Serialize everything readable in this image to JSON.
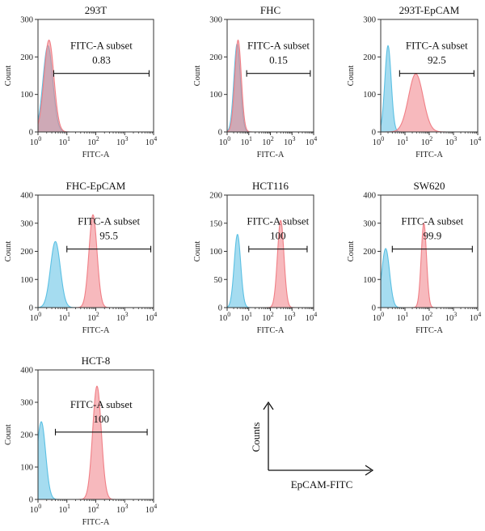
{
  "chart_data": [
    {
      "type": "area",
      "title": "293T",
      "xlabel": "FITC-A",
      "ylabel": "Count",
      "x_scale": "log",
      "xlim": [
        1,
        10000
      ],
      "ylim": [
        0,
        300
      ],
      "yticks": [
        0,
        100,
        200,
        300
      ],
      "gate": {
        "label": "FITC-A subset",
        "value": "0.83",
        "range": [
          3.5,
          7000
        ]
      },
      "series": [
        {
          "color": "#5bc0e3",
          "peaks": [
            {
              "center": 2.2,
              "height": 230,
              "width": 0.17
            }
          ]
        },
        {
          "color": "#f07f86",
          "peaks": [
            {
              "center": 2.4,
              "height": 245,
              "width": 0.17
            }
          ]
        }
      ]
    },
    {
      "type": "area",
      "title": "FHC",
      "xlabel": "FITC-A",
      "ylabel": "Count",
      "x_scale": "log",
      "xlim": [
        1,
        10000
      ],
      "ylim": [
        0,
        300
      ],
      "yticks": [
        0,
        100,
        200,
        300
      ],
      "gate": {
        "label": "FITC-A subset",
        "value": "0.15",
        "range": [
          8,
          7000
        ]
      },
      "series": [
        {
          "color": "#5bc0e3",
          "peaks": [
            {
              "center": 2.9,
              "height": 235,
              "width": 0.15
            }
          ]
        },
        {
          "color": "#f07f86",
          "peaks": [
            {
              "center": 3.2,
              "height": 245,
              "width": 0.15
            }
          ]
        }
      ]
    },
    {
      "type": "area",
      "title": "293T-EpCAM",
      "xlabel": "FITC-A",
      "ylabel": "Count",
      "x_scale": "log",
      "xlim": [
        1,
        10000
      ],
      "ylim": [
        0,
        300
      ],
      "yticks": [
        0,
        100,
        200,
        300
      ],
      "gate": {
        "label": "FITC-A subset",
        "value": "92.5",
        "range": [
          6,
          7000
        ]
      },
      "series": [
        {
          "color": "#5bc0e3",
          "peaks": [
            {
              "center": 2.0,
              "height": 230,
              "width": 0.13
            }
          ]
        },
        {
          "color": "#f07f86",
          "peaks": [
            {
              "center": 28,
              "height": 155,
              "width": 0.3
            }
          ]
        }
      ]
    },
    {
      "type": "area",
      "title": "FHC-EpCAM",
      "xlabel": "FITC-A",
      "ylabel": "Count",
      "x_scale": "log",
      "xlim": [
        1,
        10000
      ],
      "ylim": [
        0,
        400
      ],
      "yticks": [
        0,
        100,
        200,
        300,
        400
      ],
      "gate": {
        "label": "FITC-A subset",
        "value": "95.5",
        "range": [
          10,
          8000
        ]
      },
      "series": [
        {
          "color": "#5bc0e3",
          "peaks": [
            {
              "center": 4.0,
              "height": 235,
              "width": 0.17
            }
          ]
        },
        {
          "color": "#f07f86",
          "peaks": [
            {
              "center": 80,
              "height": 330,
              "width": 0.14
            }
          ]
        }
      ]
    },
    {
      "type": "area",
      "title": "HCT116",
      "xlabel": "FITC-A",
      "ylabel": "Count",
      "x_scale": "log",
      "xlim": [
        1,
        10000
      ],
      "ylim": [
        0,
        200
      ],
      "yticks": [
        0,
        50,
        100,
        150,
        200
      ],
      "gate": {
        "label": "FITC-A subset",
        "value": "100",
        "range": [
          10,
          5000
        ]
      },
      "series": [
        {
          "color": "#5bc0e3",
          "peaks": [
            {
              "center": 3.0,
              "height": 130,
              "width": 0.15
            }
          ]
        },
        {
          "color": "#f07f86",
          "peaks": [
            {
              "center": 300,
              "height": 155,
              "width": 0.15
            }
          ]
        }
      ]
    },
    {
      "type": "area",
      "title": "SW620",
      "xlabel": "FITC-A",
      "ylabel": "Count",
      "x_scale": "log",
      "xlim": [
        1,
        10000
      ],
      "ylim": [
        0,
        400
      ],
      "yticks": [
        0,
        100,
        200,
        300,
        400
      ],
      "gate": {
        "label": "FITC-A subset",
        "value": "99.9",
        "range": [
          3,
          6000
        ]
      },
      "series": [
        {
          "color": "#5bc0e3",
          "peaks": [
            {
              "center": 1.6,
              "height": 210,
              "width": 0.16
            }
          ]
        },
        {
          "color": "#f07f86",
          "peaks": [
            {
              "center": 60,
              "height": 300,
              "width": 0.11
            }
          ]
        }
      ]
    },
    {
      "type": "area",
      "title": "HCT-8",
      "xlabel": "FITC-A",
      "ylabel": "Count",
      "x_scale": "log",
      "xlim": [
        1,
        10000
      ],
      "ylim": [
        0,
        400
      ],
      "yticks": [
        0,
        100,
        200,
        300,
        400
      ],
      "gate": {
        "label": "FITC-A subset",
        "value": "100",
        "range": [
          4,
          6000
        ]
      },
      "series": [
        {
          "color": "#5bc0e3",
          "peaks": [
            {
              "center": 1.3,
              "height": 240,
              "width": 0.15
            }
          ]
        },
        {
          "color": "#f07f86",
          "peaks": [
            {
              "center": 110,
              "height": 350,
              "width": 0.15
            }
          ]
        }
      ]
    }
  ],
  "legend": {
    "y_label": "Counts",
    "x_label": "EpCAM-FITC"
  }
}
